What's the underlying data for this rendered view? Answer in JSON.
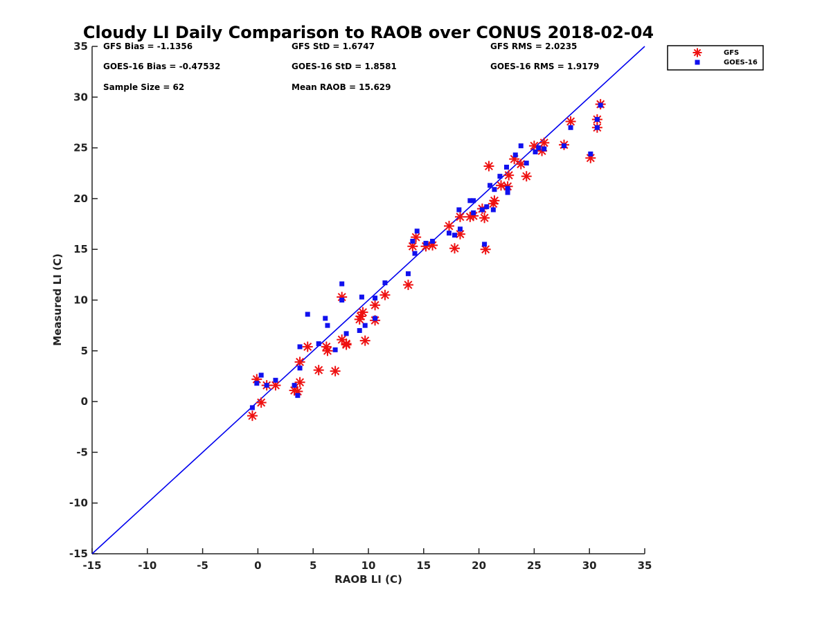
{
  "chart_data": {
    "type": "scatter",
    "title": "Cloudy LI Daily Comparison to RAOB over CONUS 2018-02-04",
    "xlabel": "RAOB LI (C)",
    "ylabel": "Measured LI (C)",
    "xlim": [
      -15,
      35
    ],
    "ylim": [
      -15,
      35
    ],
    "xticks": [
      -15,
      -10,
      -5,
      0,
      5,
      10,
      15,
      20,
      25,
      30,
      35
    ],
    "yticks": [
      -15,
      -10,
      -5,
      0,
      5,
      10,
      15,
      20,
      25,
      30,
      35
    ],
    "grid": false,
    "legend_position": "outside-top-right",
    "reference_line": {
      "type": "one-to-one",
      "color": "#0000ee"
    },
    "stats": {
      "gfs_bias": "GFS Bias = -1.1356",
      "gfs_std": "GFS StD = 1.6747",
      "gfs_rms": "GFS RMS = 2.0235",
      "goes_bias": "GOES-16 Bias = -0.47532",
      "goes_std": "GOES-16 StD = 1.8581",
      "goes_rms": "GOES-16 RMS = 1.9179",
      "sample_size": "Sample Size = 62",
      "mean_raob": "Mean RAOB = 15.629"
    },
    "series": [
      {
        "name": "GFS",
        "marker": "asterisk",
        "color": "#ee1111",
        "points": [
          [
            -0.5,
            -1.4
          ],
          [
            -0.1,
            2.2
          ],
          [
            0.3,
            -0.1
          ],
          [
            0.8,
            1.6
          ],
          [
            1.6,
            1.6
          ],
          [
            3.3,
            1.1
          ],
          [
            3.6,
            1.0
          ],
          [
            3.8,
            1.9
          ],
          [
            3.8,
            3.9
          ],
          [
            4.5,
            5.4
          ],
          [
            5.5,
            3.1
          ],
          [
            6.2,
            5.4
          ],
          [
            6.3,
            5.0
          ],
          [
            7.0,
            3.0
          ],
          [
            7.6,
            6.1
          ],
          [
            7.6,
            10.3
          ],
          [
            8.0,
            5.7
          ],
          [
            8.0,
            5.6
          ],
          [
            9.2,
            8.1
          ],
          [
            9.3,
            8.4
          ],
          [
            9.5,
            8.8
          ],
          [
            9.7,
            6.0
          ],
          [
            10.6,
            9.5
          ],
          [
            10.6,
            8.0
          ],
          [
            11.5,
            10.5
          ],
          [
            13.6,
            11.5
          ],
          [
            14.0,
            15.3
          ],
          [
            14.3,
            16.2
          ],
          [
            15.2,
            15.3
          ],
          [
            15.8,
            15.4
          ],
          [
            17.3,
            17.3
          ],
          [
            17.8,
            15.1
          ],
          [
            18.3,
            18.2
          ],
          [
            18.3,
            16.5
          ],
          [
            19.2,
            18.2
          ],
          [
            19.5,
            18.3
          ],
          [
            20.3,
            19.0
          ],
          [
            20.5,
            18.1
          ],
          [
            20.6,
            15.0
          ],
          [
            20.9,
            23.2
          ],
          [
            21.3,
            19.5
          ],
          [
            21.4,
            19.8
          ],
          [
            22.0,
            21.3
          ],
          [
            22.6,
            21.2
          ],
          [
            22.7,
            22.3
          ],
          [
            23.2,
            23.9
          ],
          [
            23.8,
            23.4
          ],
          [
            24.3,
            22.2
          ],
          [
            25.0,
            25.2
          ],
          [
            25.7,
            24.7
          ],
          [
            25.9,
            25.5
          ],
          [
            27.7,
            25.3
          ],
          [
            28.3,
            27.6
          ],
          [
            30.1,
            24.0
          ],
          [
            30.7,
            27.0
          ],
          [
            30.7,
            27.8
          ],
          [
            31.0,
            29.3
          ]
        ]
      },
      {
        "name": "GOES-16",
        "marker": "square",
        "color": "#1111ee",
        "points": [
          [
            -0.5,
            -0.6
          ],
          [
            -0.1,
            1.8
          ],
          [
            0.3,
            2.6
          ],
          [
            0.8,
            1.6
          ],
          [
            1.6,
            2.1
          ],
          [
            3.3,
            1.6
          ],
          [
            3.6,
            0.6
          ],
          [
            3.8,
            5.4
          ],
          [
            3.8,
            3.3
          ],
          [
            4.5,
            8.6
          ],
          [
            5.5,
            5.7
          ],
          [
            6.1,
            8.2
          ],
          [
            6.3,
            7.5
          ],
          [
            7.0,
            5.1
          ],
          [
            7.6,
            11.6
          ],
          [
            7.6,
            10.0
          ],
          [
            8.0,
            6.7
          ],
          [
            9.2,
            7.0
          ],
          [
            9.4,
            10.3
          ],
          [
            9.7,
            7.5
          ],
          [
            10.6,
            10.2
          ],
          [
            10.6,
            8.2
          ],
          [
            11.5,
            11.7
          ],
          [
            13.6,
            12.6
          ],
          [
            14.0,
            15.8
          ],
          [
            14.2,
            14.6
          ],
          [
            14.4,
            16.8
          ],
          [
            15.2,
            15.6
          ],
          [
            15.8,
            15.8
          ],
          [
            17.3,
            16.6
          ],
          [
            17.8,
            16.4
          ],
          [
            18.2,
            18.9
          ],
          [
            18.3,
            17.0
          ],
          [
            19.2,
            19.8
          ],
          [
            19.5,
            19.8
          ],
          [
            19.5,
            18.6
          ],
          [
            20.3,
            18.9
          ],
          [
            20.5,
            15.5
          ],
          [
            20.7,
            19.2
          ],
          [
            21.0,
            21.3
          ],
          [
            21.3,
            18.9
          ],
          [
            21.4,
            20.9
          ],
          [
            21.9,
            22.2
          ],
          [
            22.5,
            23.1
          ],
          [
            22.6,
            20.6
          ],
          [
            22.6,
            21.0
          ],
          [
            23.3,
            24.3
          ],
          [
            23.8,
            25.2
          ],
          [
            24.3,
            23.5
          ],
          [
            25.1,
            24.6
          ],
          [
            25.4,
            25.0
          ],
          [
            25.9,
            24.9
          ],
          [
            27.7,
            25.2
          ],
          [
            28.3,
            27.0
          ],
          [
            30.1,
            24.4
          ],
          [
            30.7,
            27.8
          ],
          [
            30.7,
            27.0
          ],
          [
            31.0,
            29.2
          ]
        ]
      }
    ]
  }
}
